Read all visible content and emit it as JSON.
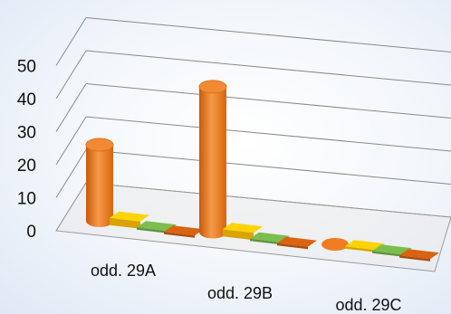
{
  "chart_data": {
    "type": "bar",
    "style": "3d-cylinder",
    "categories": [
      "odd. 29A",
      "odd. 29B",
      "odd. 29C"
    ],
    "series": [
      {
        "color": "#f07c23",
        "values": [
          23,
          44,
          0
        ]
      },
      {
        "color": "#ffc000",
        "values": [
          1,
          1,
          0
        ]
      },
      {
        "color": "#70ad47",
        "values": [
          0,
          0,
          0
        ]
      },
      {
        "color": "#c55a11",
        "values": [
          0,
          0,
          0
        ]
      }
    ],
    "yticks": [
      "0",
      "10",
      "20",
      "30",
      "40",
      "50"
    ],
    "ylim": [
      0,
      50
    ],
    "grid": true,
    "legend": "none"
  }
}
